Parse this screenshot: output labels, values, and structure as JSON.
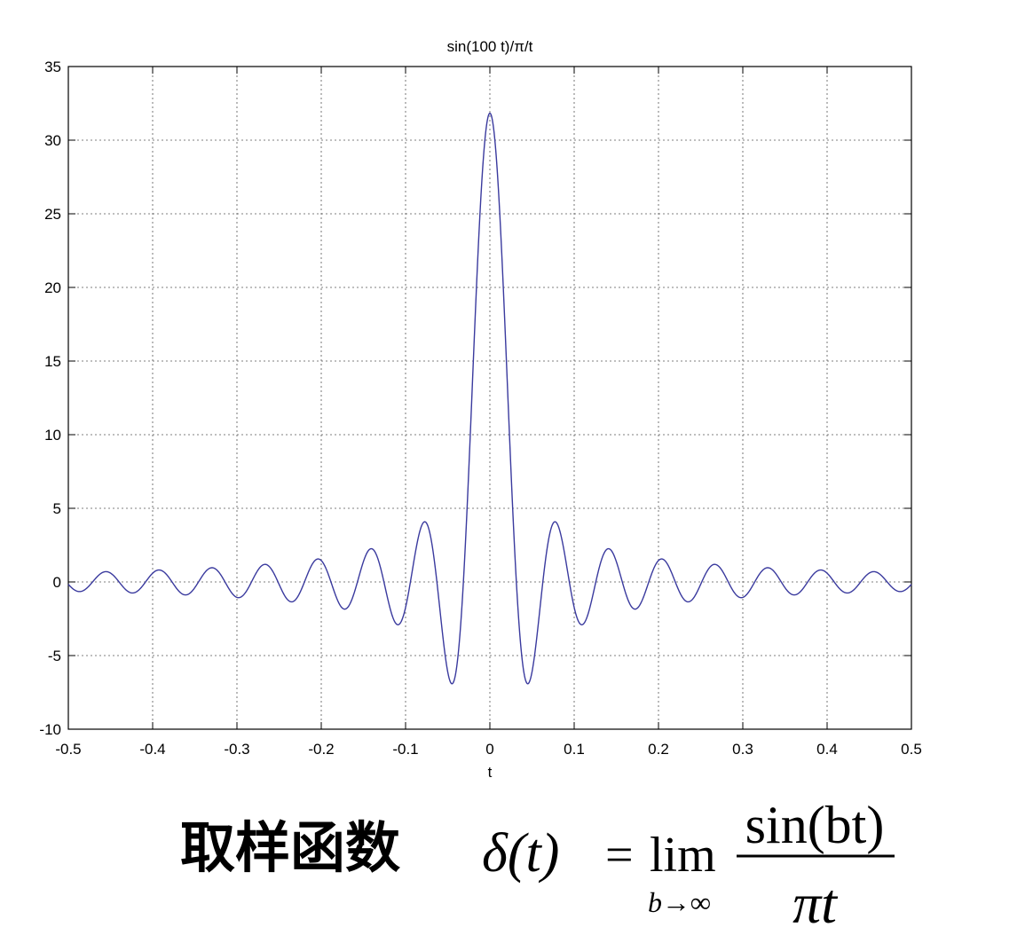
{
  "chart_data": {
    "type": "line",
    "title": "sin(100 t)/π/t",
    "xlabel": "t",
    "ylabel": "",
    "xlim": [
      -0.5,
      0.5
    ],
    "ylim": [
      -10,
      35
    ],
    "grid": true,
    "x_ticks": [
      -0.5,
      -0.4,
      -0.3,
      -0.2,
      -0.1,
      0,
      0.1,
      0.2,
      0.3,
      0.4,
      0.5
    ],
    "x_tick_labels": [
      "-0.5",
      "-0.4",
      "-0.3",
      "-0.2",
      "-0.1",
      "0",
      "0.1",
      "0.2",
      "0.3",
      "0.4",
      "0.5"
    ],
    "y_ticks": [
      -10,
      -5,
      0,
      5,
      10,
      15,
      20,
      25,
      30,
      35
    ],
    "y_tick_labels": [
      "-10",
      "-5",
      "0",
      "5",
      "10",
      "15",
      "20",
      "25",
      "30",
      "35"
    ],
    "series": [
      {
        "function": "sin(100 t)/π/t",
        "b": 100,
        "color": "#3a3a9e",
        "x_range": [
          -0.5,
          0.5
        ]
      }
    ]
  },
  "caption": {
    "label": "取样函数",
    "formula": {
      "lhs": "δ(t)",
      "equals": "=",
      "operator": "lim",
      "limit_sub": "b→∞",
      "numerator": "sin(bt)",
      "denominator": "πt"
    }
  }
}
